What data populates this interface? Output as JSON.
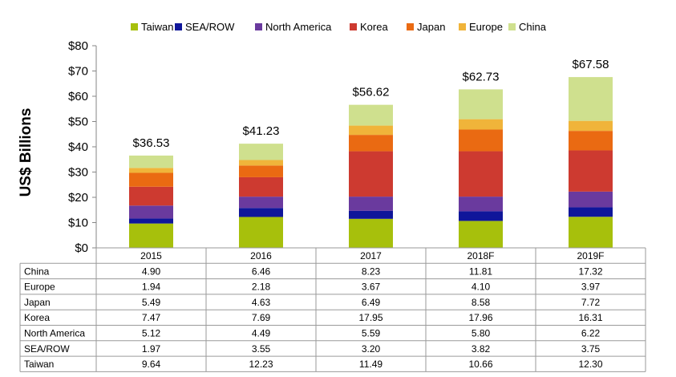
{
  "chart_data": {
    "type": "bar",
    "stacked": true,
    "ylabel": "US$ Billions",
    "ylim": [
      0,
      80
    ],
    "y_ticks": [
      "$0",
      "$10",
      "$20",
      "$30",
      "$40",
      "$50",
      "$60",
      "$70",
      "$80"
    ],
    "y_tick_values": [
      0,
      10,
      20,
      30,
      40,
      50,
      60,
      70,
      80
    ],
    "grid": false,
    "legend_position": "top",
    "categories": [
      "2015",
      "2016",
      "2017",
      "2018F",
      "2019F"
    ],
    "totals": [
      "$36.53",
      "$41.23",
      "$56.62",
      "$62.73",
      "$67.58"
    ],
    "stack_order": [
      "Taiwan",
      "SEA/ROW",
      "North America",
      "Korea",
      "Japan",
      "Europe",
      "China"
    ],
    "series": [
      {
        "name": "China",
        "color": "#cfe08e",
        "values": [
          4.9,
          6.46,
          8.23,
          11.81,
          17.32
        ],
        "labels": [
          "4.90",
          "6.46",
          "8.23",
          "11.81",
          "17.32"
        ]
      },
      {
        "name": "Europe",
        "color": "#f0b43a",
        "values": [
          1.94,
          2.18,
          3.67,
          4.1,
          3.97
        ],
        "labels": [
          "1.94",
          "2.18",
          "3.67",
          "4.10",
          "3.97"
        ]
      },
      {
        "name": "Japan",
        "color": "#ea6a12",
        "values": [
          5.49,
          4.63,
          6.49,
          8.58,
          7.72
        ],
        "labels": [
          "5.49",
          "4.63",
          "6.49",
          "8.58",
          "7.72"
        ]
      },
      {
        "name": "Korea",
        "color": "#cd3a30",
        "values": [
          7.47,
          7.69,
          17.95,
          17.96,
          16.31
        ],
        "labels": [
          "7.47",
          "7.69",
          "17.95",
          "17.96",
          "16.31"
        ]
      },
      {
        "name": "North America",
        "color": "#6a3a9e",
        "values": [
          5.12,
          4.49,
          5.59,
          5.8,
          6.22
        ],
        "labels": [
          "5.12",
          "4.49",
          "5.59",
          "5.80",
          "6.22"
        ]
      },
      {
        "name": "SEA/ROW",
        "color": "#0f169a",
        "values": [
          1.97,
          3.55,
          3.2,
          3.82,
          3.75
        ],
        "labels": [
          "1.97",
          "3.55",
          "3.20",
          "3.82",
          "3.75"
        ]
      },
      {
        "name": "Taiwan",
        "color": "#a7c00c",
        "values": [
          9.64,
          12.23,
          11.49,
          10.66,
          12.3
        ],
        "labels": [
          "9.64",
          "12.23",
          "11.49",
          "10.66",
          "12.30"
        ]
      }
    ]
  }
}
